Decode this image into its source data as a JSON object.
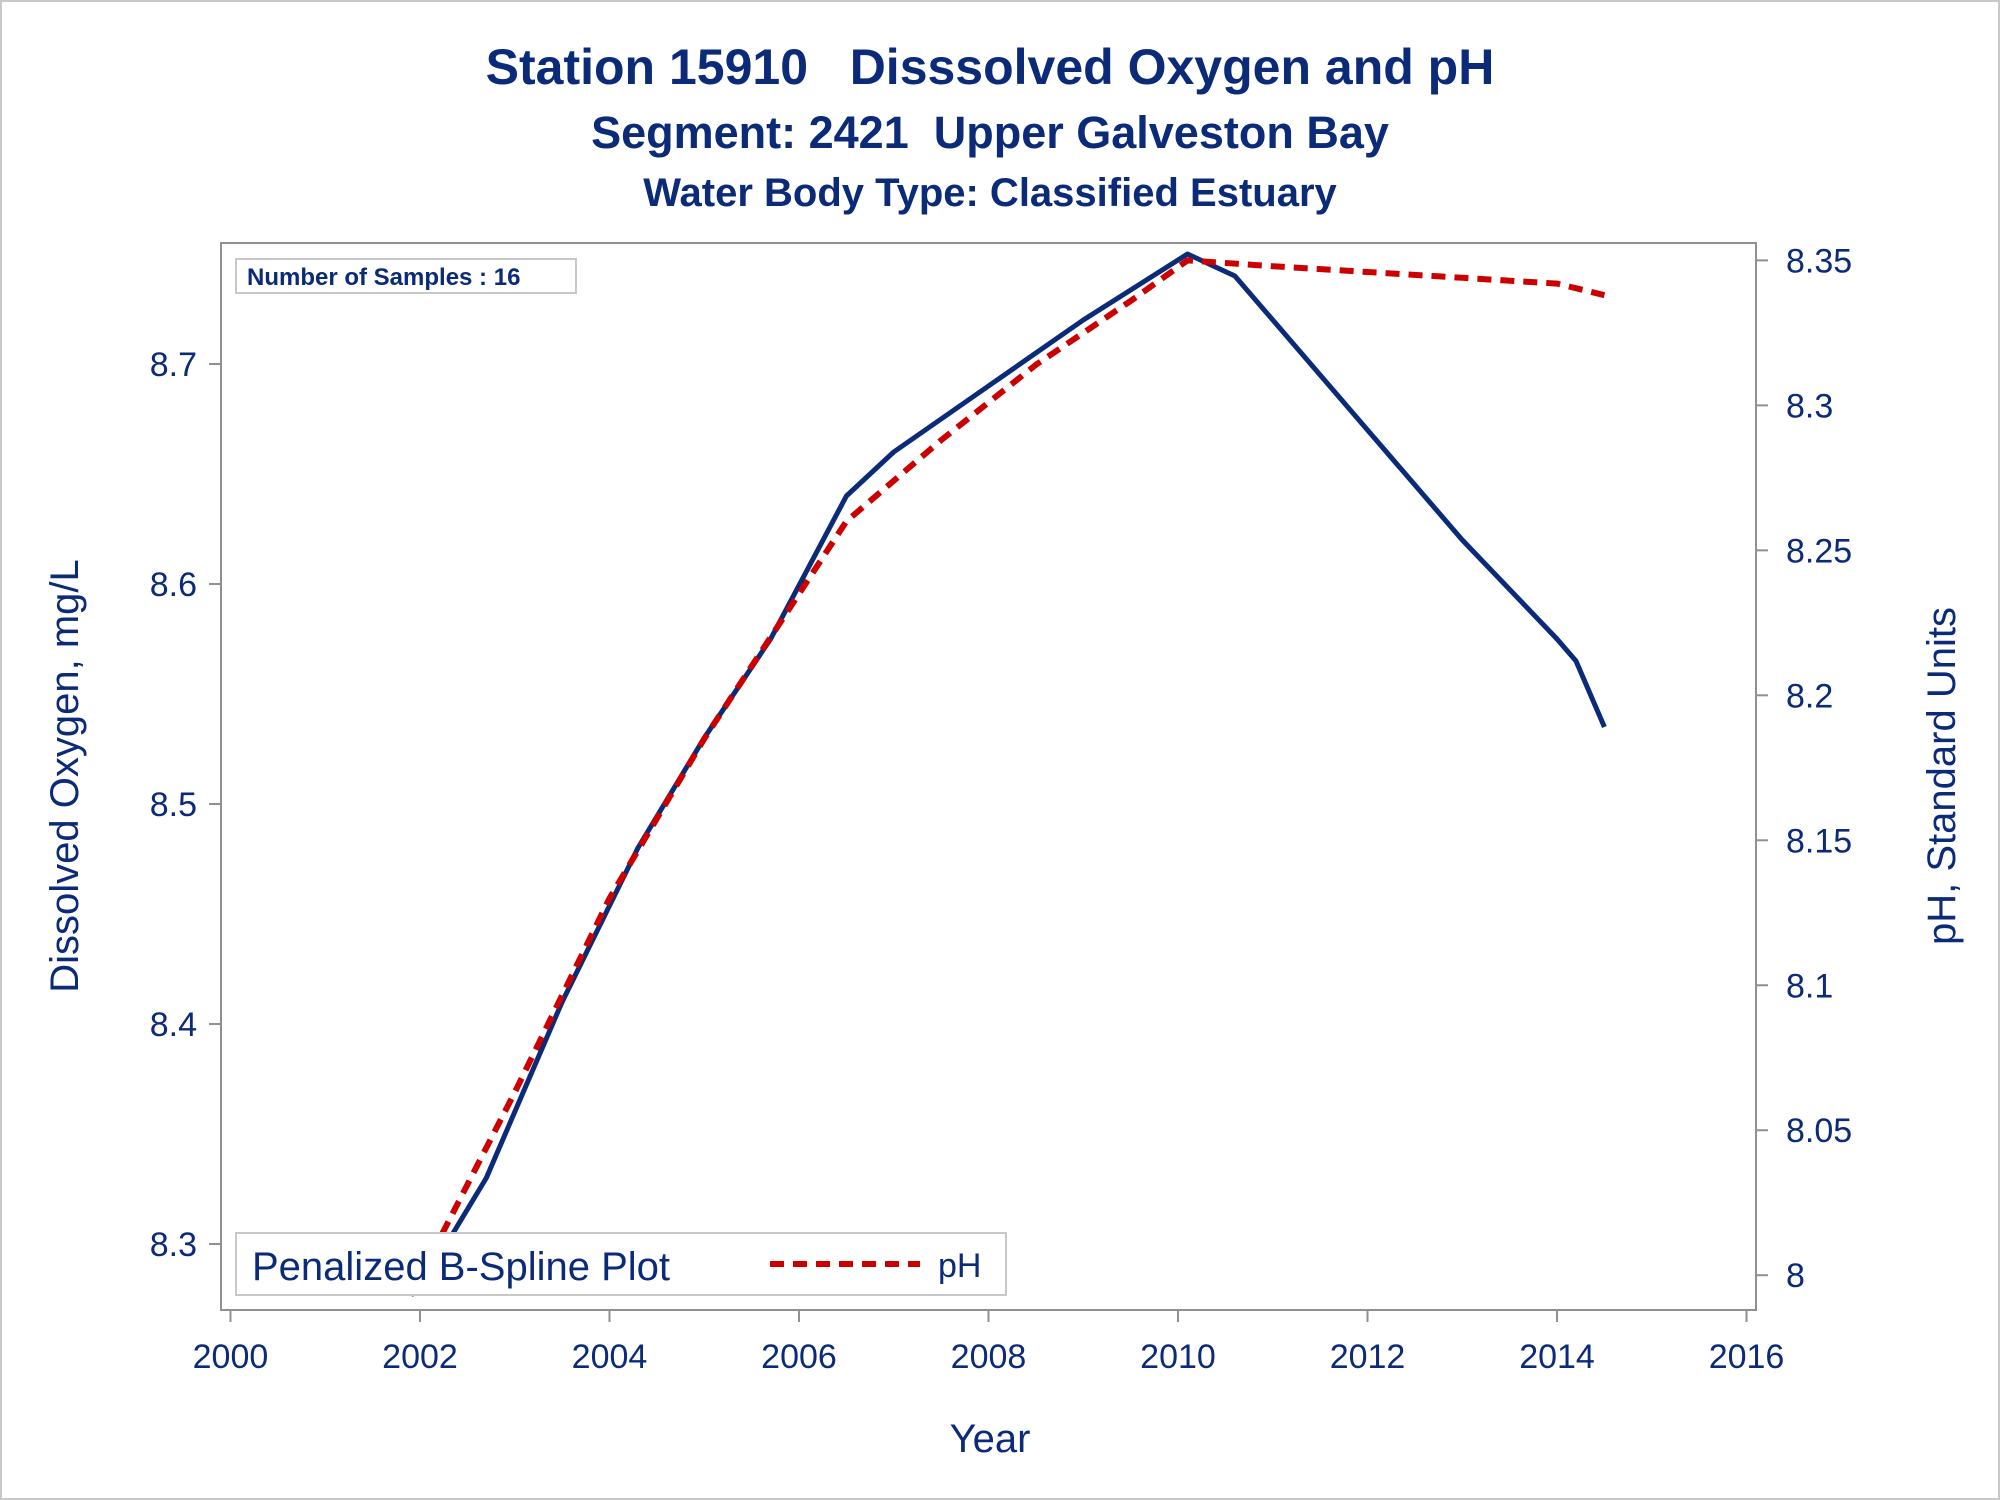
{
  "colors": {
    "text": "#0B2A78",
    "do_line": "#0B2A78",
    "ph_line": "#CC0000",
    "frame": "#909090",
    "outer_border": "#C8C8C8"
  },
  "chart_data": {
    "type": "line",
    "title": "Station 15910   Disssolved Oxygen and pH",
    "subtitle": "Segment: 2421  Upper Galveston Bay",
    "subtitle2": "Water Body Type: Classified Estuary",
    "xlabel": "Year",
    "ylabel": "Dissolved Oxygen, mg/L",
    "y2label": "pH, Standard Units",
    "xlim": [
      1999.9,
      2016.1
    ],
    "ylim": [
      8.27,
      8.755
    ],
    "y2lim": [
      7.988,
      8.356
    ],
    "xticks": [
      "2000",
      "2002",
      "2004",
      "2006",
      "2008",
      "2010",
      "2012",
      "2014",
      "2016"
    ],
    "yticks": [
      "8.3",
      "8.4",
      "8.5",
      "8.6",
      "8.7"
    ],
    "y2ticks": [
      "8",
      "8.05",
      "8.1",
      "8.15",
      "8.2",
      "8.25",
      "8.3",
      "8.35"
    ],
    "inset_text": "Number of Samples : 16",
    "legend": {
      "title": "Penalized B-Spline Plot",
      "item": "pH",
      "placement": "bottom-left"
    },
    "series": [
      {
        "axis": "left",
        "style": "solid",
        "x": [
          2002.0,
          2002.7,
          2003.5,
          2004.3,
          2005.0,
          2005.7,
          2006.5,
          2007.0,
          2008.0,
          2009.0,
          2010.1,
          2010.6,
          2011.0,
          2012.0,
          2013.0,
          2014.0,
          2014.2,
          2014.5
        ],
        "values": [
          8.28,
          8.33,
          8.41,
          8.48,
          8.53,
          8.575,
          8.64,
          8.66,
          8.69,
          8.72,
          8.75,
          8.74,
          8.72,
          8.67,
          8.62,
          8.575,
          8.565,
          8.535
        ]
      },
      {
        "name": "pH",
        "axis": "right",
        "style": "dashed",
        "x": [
          2001.9,
          2003.0,
          2004.0,
          2005.0,
          2006.5,
          2007.5,
          2008.5,
          2009.5,
          2010.1,
          2011.0,
          2012.0,
          2013.0,
          2014.0,
          2014.5
        ],
        "values": [
          7.993,
          8.063,
          8.13,
          8.185,
          8.26,
          8.288,
          8.314,
          8.336,
          8.35,
          8.348,
          8.346,
          8.344,
          8.342,
          8.338
        ]
      }
    ]
  }
}
